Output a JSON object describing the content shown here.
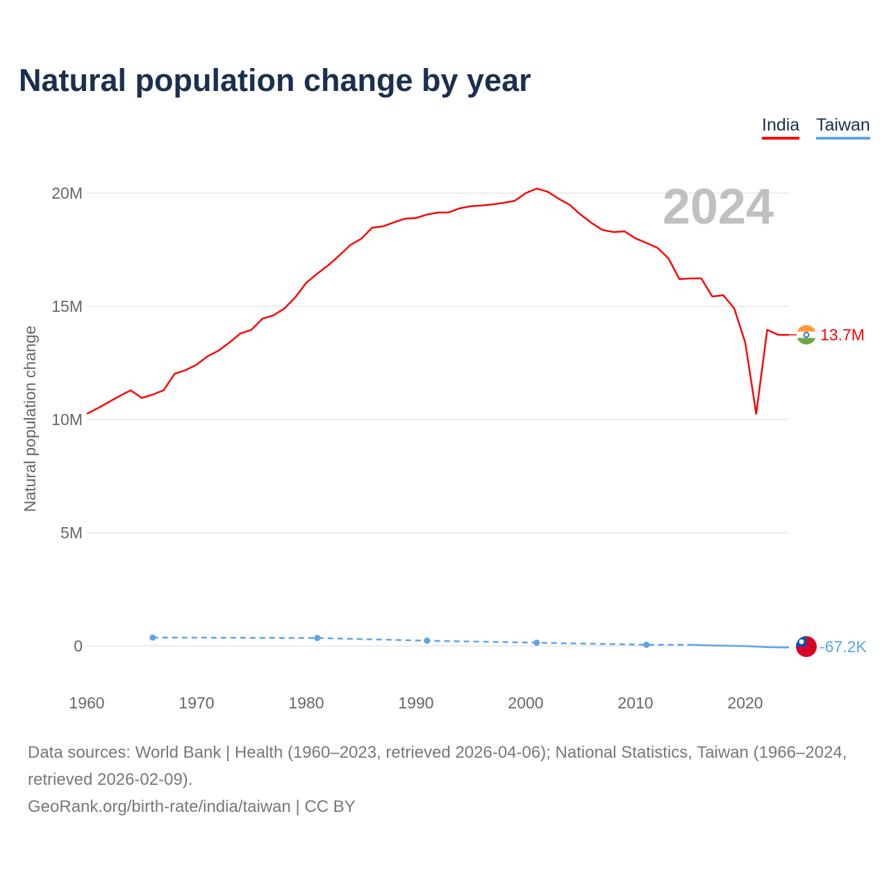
{
  "title": "Natural population change by year",
  "legend": [
    "India",
    "Taiwan"
  ],
  "sources": {
    "line1": "Data sources: World Bank | Health (1960–2023, retrieved 2026-04-06); National Statistics, Taiwan (1966–2024, retrieved 2026-02-09).",
    "line2": "GeoRank.org/birth-rate/india/taiwan | CC BY"
  },
  "chart_data": {
    "type": "line",
    "title": "Natural population change by year",
    "ylabel": "Natural population change",
    "xlabel": "",
    "year_label": "2024",
    "xlim": [
      1960,
      2024
    ],
    "ylim": [
      -1.5,
      21.2
    ],
    "x_ticks": [
      1960,
      1970,
      1980,
      1990,
      2000,
      2010,
      2020
    ],
    "y_ticks": [
      {
        "v": 0,
        "label": "0"
      },
      {
        "v": 5,
        "label": "5M"
      },
      {
        "v": 10,
        "label": "10M"
      },
      {
        "v": 15,
        "label": "15M"
      },
      {
        "v": 20,
        "label": "20M"
      }
    ],
    "units": "millions",
    "series": [
      {
        "name": "India",
        "color": "#ff0000",
        "end_label": "13.7M",
        "start": 1960,
        "values": [
          10.25,
          10.5,
          10.77,
          11.04,
          11.29,
          10.95,
          11.1,
          11.29,
          12.02,
          12.18,
          12.42,
          12.79,
          13.04,
          13.4,
          13.8,
          13.96,
          14.45,
          14.6,
          14.9,
          15.4,
          16.04,
          16.44,
          16.81,
          17.24,
          17.7,
          17.98,
          18.47,
          18.53,
          18.71,
          18.87,
          18.9,
          19.05,
          19.14,
          19.15,
          19.33,
          19.42,
          19.45,
          19.5,
          19.57,
          19.66,
          20.0,
          20.2,
          20.06,
          19.75,
          19.48,
          19.05,
          18.68,
          18.37,
          18.28,
          18.31,
          18.0,
          17.8,
          17.58,
          17.12,
          16.2,
          16.23,
          16.23,
          15.43,
          15.49,
          14.9,
          13.4,
          10.25,
          13.96,
          13.74,
          13.74
        ]
      },
      {
        "name": "Taiwan",
        "color": "#5ba4ea",
        "end_label": "-67.2K",
        "sparse_points": [
          [
            1966,
            0.37
          ],
          [
            1981,
            0.35
          ],
          [
            1991,
            0.23
          ],
          [
            2001,
            0.14
          ],
          [
            2011,
            0.05
          ],
          [
            2015,
            0.05
          ]
        ],
        "annual": [
          [
            2015,
            0.05
          ],
          [
            2016,
            0.036
          ],
          [
            2017,
            0.02
          ],
          [
            2018,
            0.01
          ],
          [
            2019,
            0.003
          ],
          [
            2020,
            -0.007
          ],
          [
            2021,
            -0.029
          ],
          [
            2022,
            -0.055
          ],
          [
            2023,
            -0.066
          ],
          [
            2024,
            -0.0672
          ]
        ]
      }
    ]
  }
}
